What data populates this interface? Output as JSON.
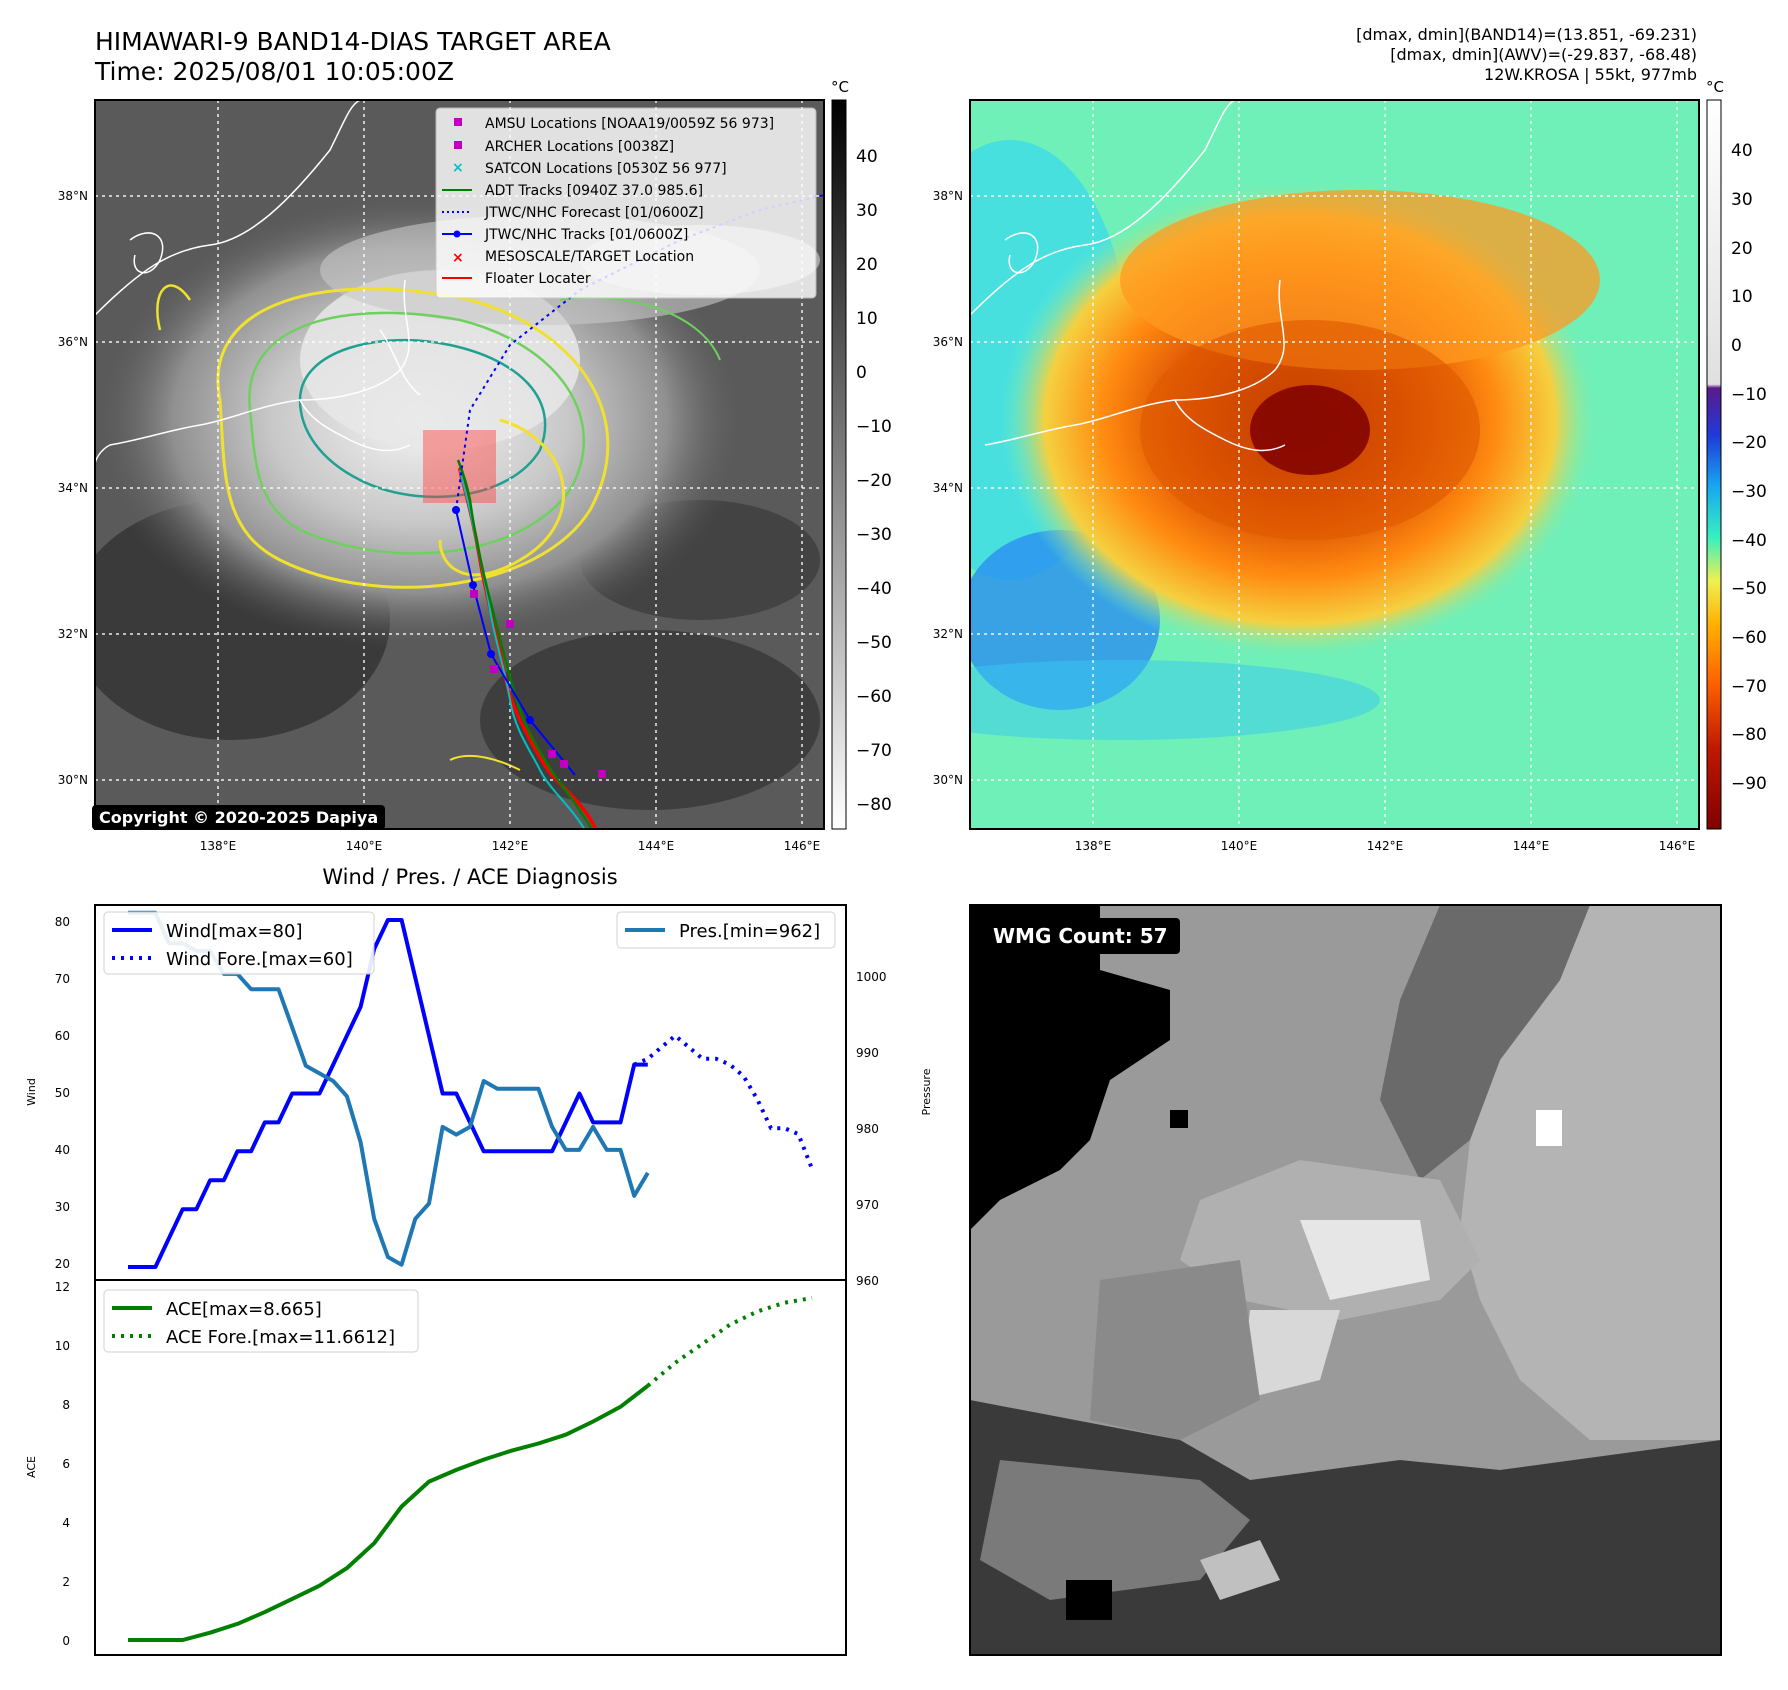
{
  "header": {
    "title": "HIMAWARI-9 BAND14-DIAS TARGET AREA",
    "time": "Time: 2025/08/01 10:05:00Z",
    "info_lines": [
      "[dmax, dmin](BAND14)=(13.851, -69.231)",
      "[dmax, dmin](AWV)=(-29.837, -68.48)",
      "12W.KROSA | 55kt, 977mb"
    ]
  },
  "maps": {
    "lat_labels": [
      "38°N",
      "36°N",
      "34°N",
      "32°N",
      "30°N"
    ],
    "lon_labels": [
      "138°E",
      "140°E",
      "142°E",
      "144°E",
      "146°E"
    ],
    "copyright": "Copyright © 2020-2025 Dapiya",
    "legend": [
      {
        "label": "AMSU Locations [NOAA19/0059Z 56 973]",
        "color": "#c000c0",
        "kind": "square"
      },
      {
        "label": "ARCHER Locations [0038Z]",
        "color": "#c000c0",
        "kind": "square"
      },
      {
        "label": "SATCON Locations [0530Z 56 977]",
        "color": "#00c0c0",
        "kind": "x"
      },
      {
        "label": "ADT Tracks [0940Z 37.0 985.6]",
        "color": "#008000",
        "kind": "line"
      },
      {
        "label": "JTWC/NHC Forecast [01/0600Z]",
        "color": "#0000ff",
        "kind": "dotted"
      },
      {
        "label": "JTWC/NHC Tracks [01/0600Z]",
        "color": "#0000ff",
        "kind": "linedot"
      },
      {
        "label": "MESOSCALE/TARGET Location",
        "color": "#ff0000",
        "kind": "x"
      },
      {
        "label": "Floater Locater",
        "color": "#ff0000",
        "kind": "line"
      }
    ]
  },
  "colorbars": {
    "unit": "°C",
    "gray_ticks": [
      "40",
      "30",
      "20",
      "10",
      "0",
      "−10",
      "−20",
      "−30",
      "−40",
      "−50",
      "−60",
      "−70",
      "−80"
    ],
    "color_ticks": [
      "40",
      "30",
      "20",
      "10",
      "0",
      "−10",
      "−20",
      "−30",
      "−40",
      "−50",
      "−60",
      "−70",
      "−80",
      "−90"
    ]
  },
  "diagnosis": {
    "title": "Wind / Pres. / ACE Diagnosis",
    "ylabel_wind": "Wind",
    "ylabel_pressure": "Pressure",
    "ylabel_ace": "ACE",
    "wind_ticks": [
      "80",
      "70",
      "60",
      "50",
      "40",
      "30",
      "20"
    ],
    "pressure_ticks": [
      "1000",
      "990",
      "980",
      "970",
      "960"
    ],
    "ace_ticks": [
      "12",
      "10",
      "8",
      "6",
      "4",
      "2",
      "0"
    ],
    "legend_wind": "Wind[max=80]",
    "legend_wind_fore": "Wind Fore.[max=60]",
    "legend_pres": "Pres.[min=962]",
    "legend_ace": "ACE[max=8.665]",
    "legend_ace_fore": "ACE Fore.[max=11.6612]"
  },
  "wmg": {
    "label": "WMG Count: 57"
  },
  "chart_data": [
    {
      "type": "line",
      "title": "Wind / Pres. / ACE Diagnosis",
      "ylabel": "Wind",
      "ylim": [
        18,
        81
      ],
      "series": [
        {
          "name": "Wind[max=80]",
          "color": "#0000ff",
          "style": "solid",
          "x": [
            0,
            1,
            2,
            3,
            4,
            5,
            6,
            7,
            8,
            9,
            10,
            11,
            12,
            13,
            14,
            15,
            16,
            17,
            18,
            19,
            20,
            21,
            22,
            23,
            24,
            25,
            26,
            27,
            28,
            29,
            30,
            31,
            32,
            33,
            34,
            35,
            36,
            37,
            38,
            39,
            40
          ],
          "y": [
            20,
            20,
            20,
            25,
            30,
            30,
            35,
            35,
            40,
            40,
            45,
            45,
            50,
            50,
            50,
            55,
            60,
            65,
            75,
            80,
            80,
            70,
            60,
            50,
            50,
            45,
            40,
            40,
            40,
            40,
            40,
            40,
            45,
            50,
            45,
            45,
            45,
            55,
            55,
            null,
            null
          ]
        },
        {
          "name": "Wind Fore.[max=60]",
          "color": "#0000ff",
          "style": "dotted",
          "x": [
            37,
            38,
            39,
            40,
            41,
            42,
            43,
            44,
            45,
            46,
            47,
            48,
            49,
            50
          ],
          "y": [
            55,
            56,
            58,
            60,
            58,
            56,
            56,
            55,
            53,
            49,
            44,
            44,
            43,
            37
          ]
        }
      ]
    },
    {
      "type": "line",
      "ylabel": "Pressure",
      "ylim": [
        960,
        1008
      ],
      "series": [
        {
          "name": "Pres.[min=962]",
          "color": "#1f77b4",
          "style": "solid",
          "x": [
            0,
            1,
            2,
            3,
            4,
            5,
            6,
            7,
            8,
            9,
            10,
            11,
            12,
            13,
            14,
            15,
            16,
            17,
            18,
            19,
            20,
            21,
            22,
            23,
            24,
            25,
            26,
            27,
            28,
            29,
            30,
            31,
            32,
            33,
            34,
            35,
            36,
            37,
            38
          ],
          "y": [
            1008,
            1008,
            1008,
            1004,
            1004,
            1003,
            1003,
            1000,
            1000,
            998,
            998,
            998,
            993,
            988,
            987,
            986,
            984,
            978,
            968,
            963,
            962,
            968,
            970,
            980,
            979,
            980,
            986,
            985,
            985,
            985,
            985,
            980,
            977,
            977,
            980,
            977,
            977,
            971,
            974
          ]
        }
      ]
    },
    {
      "type": "line",
      "ylabel": "ACE",
      "ylim": [
        0,
        12
      ],
      "series": [
        {
          "name": "ACE[max=8.665]",
          "color": "#008000",
          "style": "solid",
          "x": [
            0,
            2,
            4,
            6,
            8,
            10,
            12,
            14,
            16,
            18,
            20,
            22,
            24,
            26,
            28,
            30,
            32,
            34,
            36,
            38
          ],
          "y": [
            0,
            0,
            0,
            0.25,
            0.55,
            0.95,
            1.4,
            1.85,
            2.45,
            3.3,
            4.55,
            5.4,
            5.8,
            6.15,
            6.45,
            6.7,
            7.0,
            7.45,
            7.95,
            8.665
          ]
        },
        {
          "name": "ACE Fore.[max=11.6612]",
          "color": "#008000",
          "style": "dotted",
          "x": [
            38,
            40,
            42,
            44,
            46,
            48,
            50
          ],
          "y": [
            8.665,
            9.45,
            10.1,
            10.75,
            11.2,
            11.5,
            11.66
          ]
        }
      ]
    }
  ]
}
